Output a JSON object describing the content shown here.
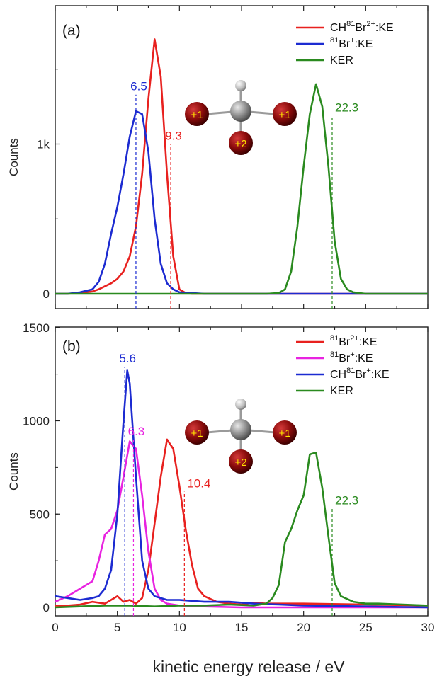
{
  "chart_data": [
    {
      "type": "line",
      "panel_label": "(a)",
      "xlim": [
        0,
        30
      ],
      "ylim": [
        -100,
        1900
      ],
      "ylabel": "Counts",
      "yticks": [
        {
          "value": 0,
          "label": "0"
        },
        {
          "value": 1000,
          "label": "1k"
        }
      ],
      "legend_position": "top-right",
      "series": [
        {
          "name_parts": [
            {
              "t": "CH"
            },
            {
              "t": "81",
              "sup": true
            },
            {
              "t": "Br"
            },
            {
              "t": "2+",
              "sup": true
            },
            {
              "t": ":KE"
            }
          ],
          "color": "#e8211f",
          "x": [
            0,
            1,
            2,
            3,
            3.5,
            4,
            4.5,
            5,
            5.5,
            6,
            6.5,
            7,
            7.5,
            8,
            8.5,
            9,
            9.5,
            10,
            10.5,
            11,
            12,
            30
          ],
          "y": [
            0,
            0,
            5,
            15,
            30,
            50,
            70,
            100,
            150,
            250,
            450,
            800,
            1300,
            1700,
            1450,
            800,
            250,
            30,
            5,
            0,
            0,
            0
          ]
        },
        {
          "name_parts": [
            {
              "t": "81",
              "sup": true
            },
            {
              "t": "Br"
            },
            {
              "t": "+",
              "sup": true
            },
            {
              "t": ":KE"
            }
          ],
          "color": "#1c2bd1",
          "x": [
            0,
            1,
            2,
            2.5,
            3,
            3.5,
            4,
            4.5,
            5,
            5.5,
            6,
            6.5,
            7,
            7.5,
            8,
            8.5,
            9,
            9.5,
            10,
            11,
            12,
            30
          ],
          "y": [
            0,
            0,
            10,
            20,
            30,
            80,
            200,
            400,
            580,
            800,
            1050,
            1220,
            1200,
            950,
            500,
            200,
            70,
            30,
            10,
            5,
            0,
            0
          ]
        },
        {
          "name_parts": [
            {
              "t": "KER"
            }
          ],
          "color": "#2a8a1f",
          "x": [
            0,
            5,
            10,
            15,
            17,
            18,
            18.5,
            19,
            19.5,
            20,
            20.5,
            21,
            21.5,
            22,
            22.5,
            23,
            23.5,
            24,
            25,
            30
          ],
          "y": [
            0,
            0,
            0,
            0,
            0,
            5,
            30,
            150,
            450,
            850,
            1200,
            1400,
            1250,
            850,
            350,
            100,
            30,
            10,
            0,
            0
          ]
        }
      ],
      "annotations": [
        {
          "text": "6.5",
          "x": 6.5,
          "color": "#1c2bd1",
          "line_top": 1330
        },
        {
          "text": "9.3",
          "x": 9.3,
          "color": "#e8211f",
          "line_top": 1000
        },
        {
          "text": "22.3",
          "x": 22.3,
          "color": "#2a8a1f",
          "line_top": 1190
        }
      ],
      "molecule_charges": [
        "+1",
        "+1",
        "+2"
      ]
    },
    {
      "type": "line",
      "panel_label": "(b)",
      "xlim": [
        0,
        30
      ],
      "ylim": [
        -80,
        1500
      ],
      "ylabel": "Counts",
      "xlabel": "kinetic energy release / eV",
      "yticks": [
        {
          "value": 0,
          "label": "0"
        },
        {
          "value": 500,
          "label": "500"
        },
        {
          "value": 1000,
          "label": "1000"
        },
        {
          "value": 1500,
          "label": "1500"
        }
      ],
      "xticks": [
        0,
        5,
        10,
        15,
        20,
        25,
        30
      ],
      "legend_position": "top-right",
      "series": [
        {
          "name_parts": [
            {
              "t": "81",
              "sup": true
            },
            {
              "t": "Br"
            },
            {
              "t": "2+",
              "sup": true
            },
            {
              "t": ":KE"
            }
          ],
          "color": "#e8211f",
          "x": [
            0,
            1,
            2,
            3,
            4,
            4.5,
            5,
            5.5,
            6,
            6.5,
            7,
            7.5,
            8,
            8.5,
            9,
            9.5,
            10,
            10.5,
            11,
            11.5,
            12,
            13,
            14,
            15,
            16,
            17,
            20,
            25,
            30
          ],
          "y": [
            10,
            10,
            15,
            30,
            20,
            40,
            60,
            30,
            40,
            20,
            50,
            200,
            450,
            700,
            900,
            850,
            650,
            420,
            230,
            100,
            60,
            30,
            20,
            15,
            25,
            20,
            20,
            15,
            10
          ]
        },
        {
          "name_parts": [
            {
              "t": "81",
              "sup": true
            },
            {
              "t": "Br"
            },
            {
              "t": "+",
              "sup": true
            },
            {
              "t": ":KE"
            }
          ],
          "color": "#e823e0",
          "x": [
            0,
            1,
            2,
            3,
            3.5,
            4,
            4.5,
            5,
            5.5,
            6,
            6.5,
            7,
            7.5,
            8,
            8.5,
            9,
            10,
            12,
            15,
            30
          ],
          "y": [
            30,
            60,
            100,
            140,
            250,
            390,
            420,
            520,
            700,
            890,
            850,
            600,
            300,
            100,
            40,
            20,
            10,
            5,
            0,
            0
          ]
        },
        {
          "name_parts": [
            {
              "t": "CH"
            },
            {
              "t": "81",
              "sup": true
            },
            {
              "t": "Br"
            },
            {
              "t": "+",
              "sup": true
            },
            {
              "t": ":KE"
            }
          ],
          "color": "#1c2bd1",
          "x": [
            0,
            1,
            2,
            3,
            3.5,
            4,
            4.5,
            5,
            5.5,
            5.8,
            6,
            6.5,
            7,
            7.5,
            8,
            9,
            10,
            12,
            14,
            16,
            18,
            20,
            25,
            30
          ],
          "y": [
            60,
            50,
            40,
            50,
            60,
            100,
            200,
            500,
            1000,
            1270,
            1200,
            700,
            250,
            100,
            60,
            40,
            40,
            30,
            30,
            20,
            15,
            10,
            5,
            0
          ]
        },
        {
          "name_parts": [
            {
              "t": "KER"
            }
          ],
          "color": "#2a8a1f",
          "x": [
            0,
            2,
            4,
            6,
            8,
            10,
            12,
            14,
            16,
            17,
            17.5,
            18,
            18.5,
            19,
            19.5,
            20,
            20.5,
            21,
            21.5,
            22,
            22.5,
            23,
            24,
            25,
            26,
            28,
            30
          ],
          "y": [
            0,
            5,
            10,
            10,
            5,
            10,
            10,
            15,
            10,
            20,
            50,
            120,
            350,
            420,
            520,
            600,
            820,
            830,
            640,
            380,
            130,
            60,
            30,
            20,
            20,
            15,
            10
          ]
        }
      ],
      "annotations": [
        {
          "text": "5.6",
          "x": 5.6,
          "color": "#1c2bd1",
          "line_top": 1290
        },
        {
          "text": "6.3",
          "x": 6.3,
          "color": "#e823e0",
          "line_top": 900
        },
        {
          "text": "10.4",
          "x": 10.4,
          "color": "#e8211f",
          "line_top": 620
        },
        {
          "text": "22.3",
          "x": 22.3,
          "color": "#2a8a1f",
          "line_top": 530
        }
      ],
      "molecule_charges": [
        "+1",
        "+1",
        "+2"
      ]
    }
  ]
}
